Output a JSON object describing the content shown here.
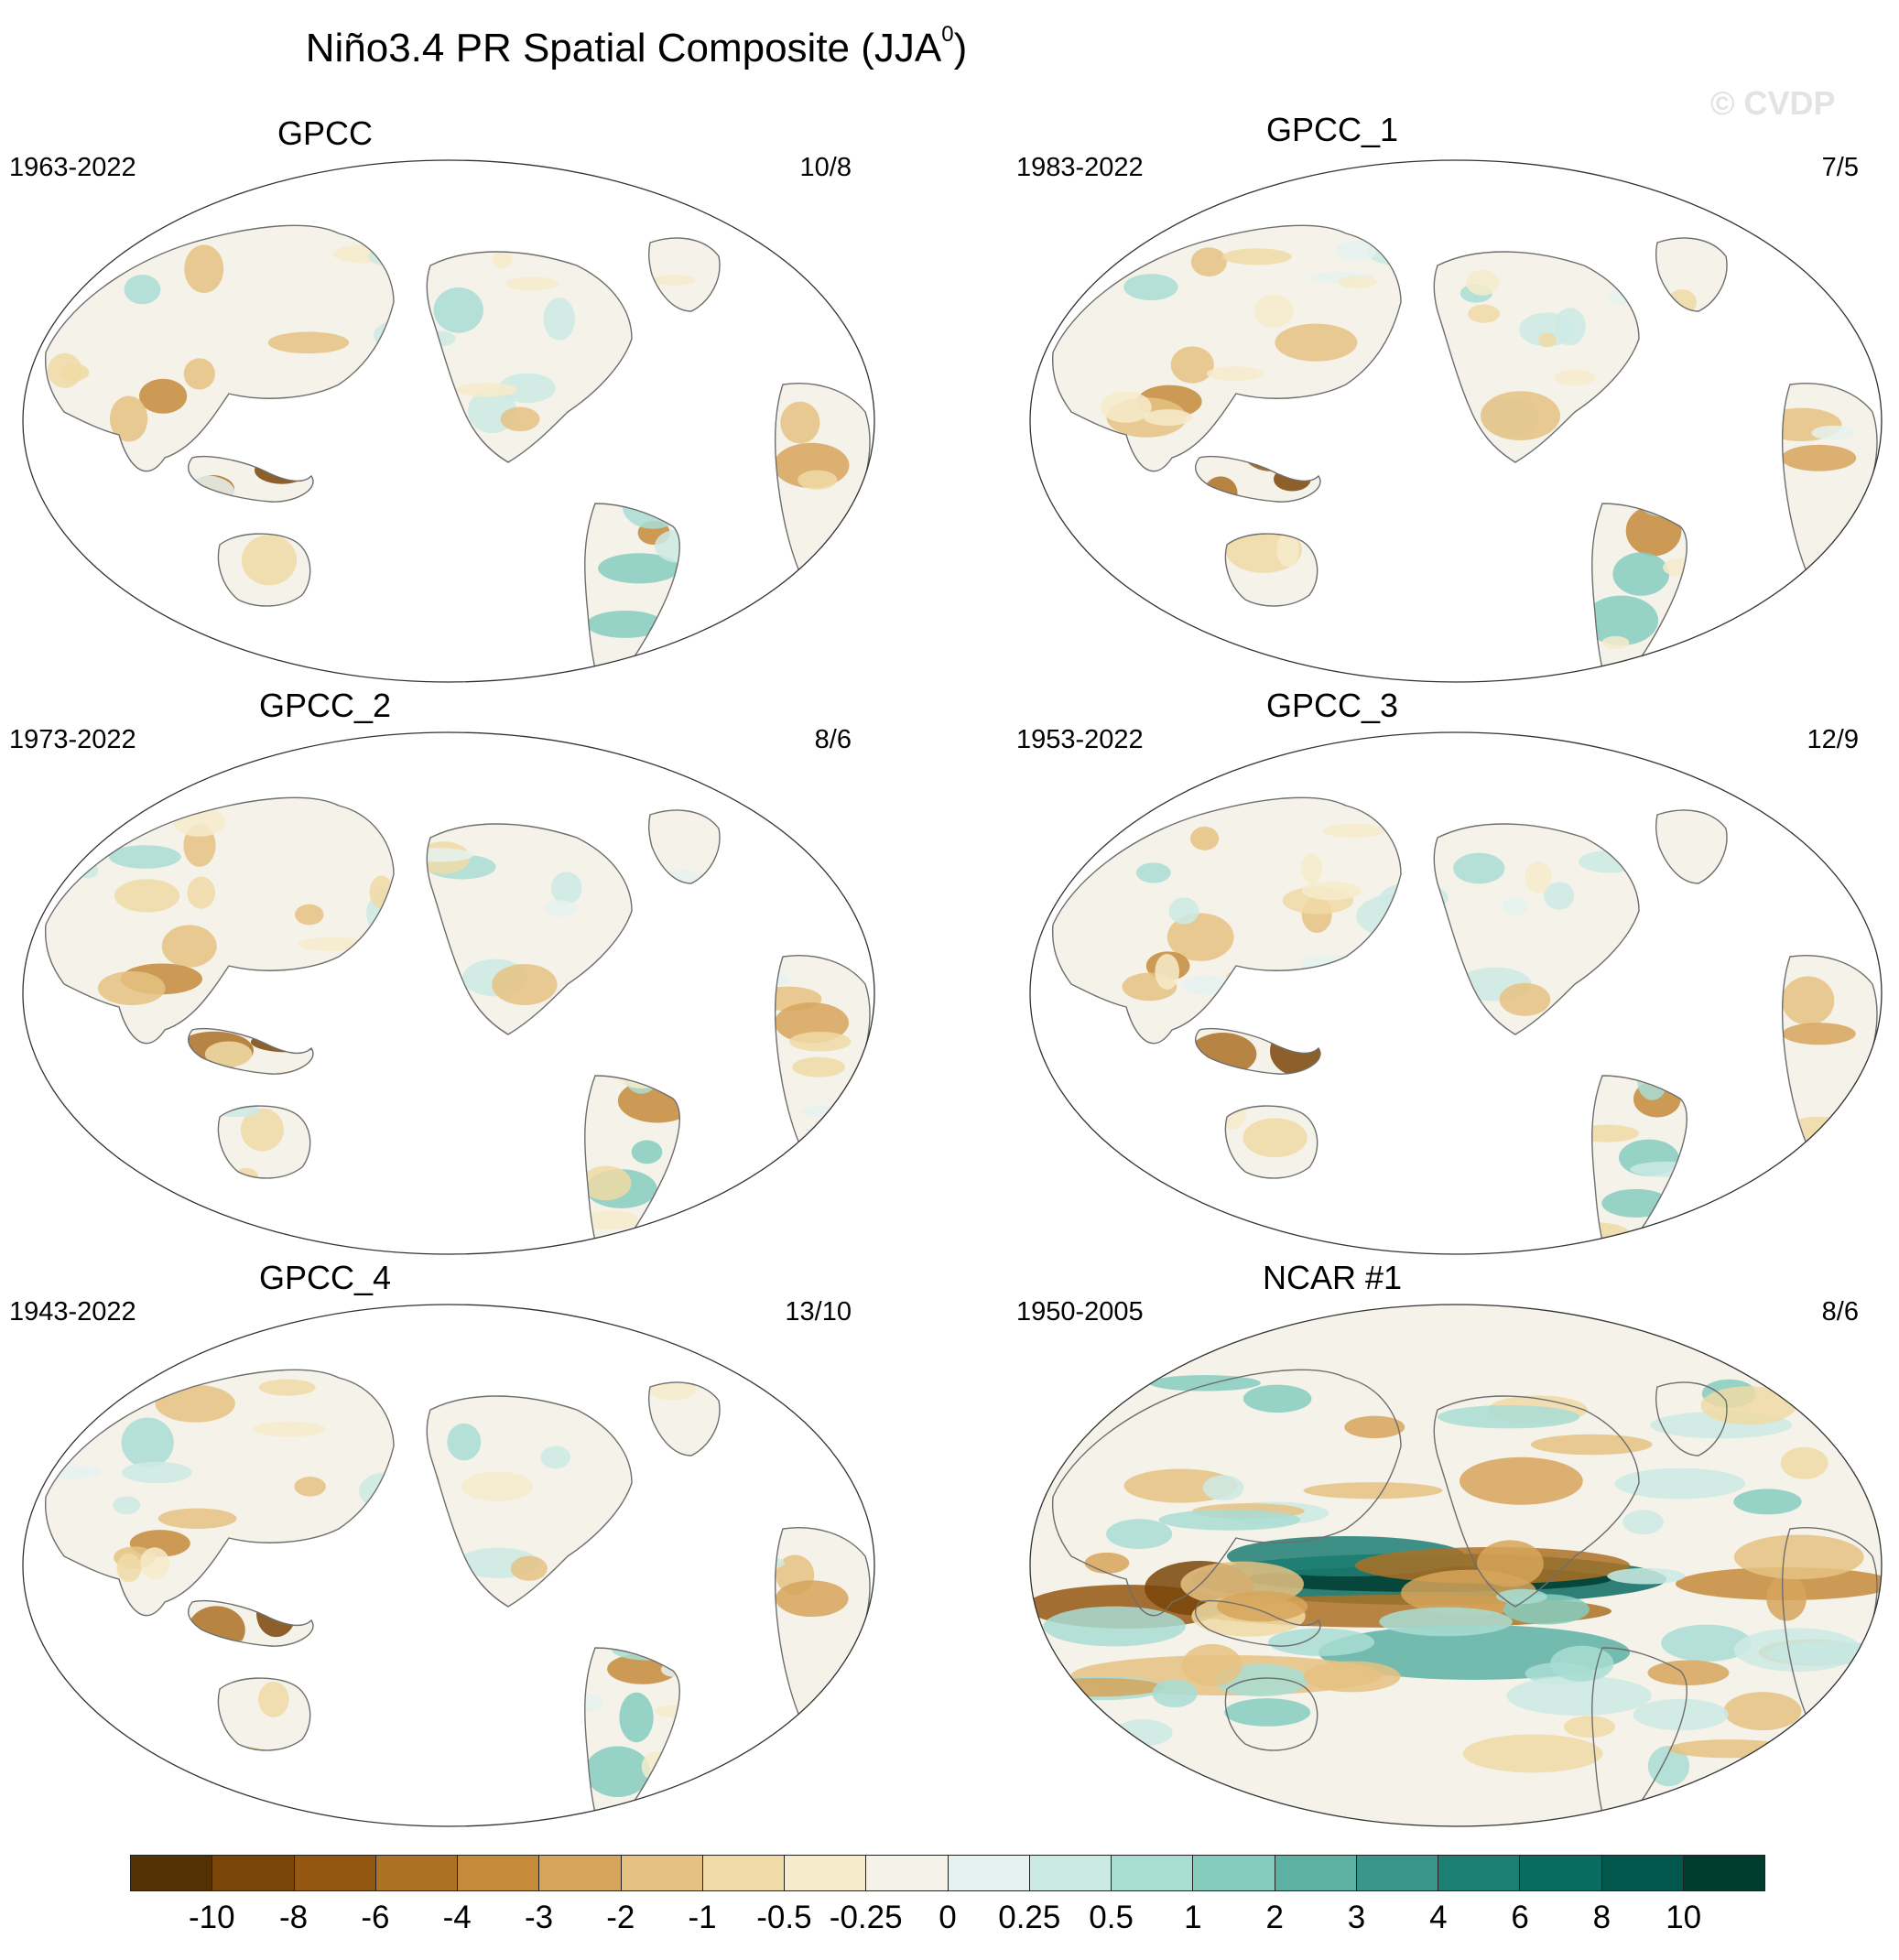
{
  "title": {
    "main": "Niño3.4 PR Spatial Composite (JJA",
    "sup": "0",
    "close": ")"
  },
  "watermark": "© CVDP",
  "panels": [
    {
      "name": "GPCC",
      "years": "1963-2022",
      "count": "10/8",
      "variant": "obs"
    },
    {
      "name": "GPCC_1",
      "years": "1983-2022",
      "count": "7/5",
      "variant": "obs"
    },
    {
      "name": "GPCC_2",
      "years": "1973-2022",
      "count": "8/6",
      "variant": "obs"
    },
    {
      "name": "GPCC_3",
      "years": "1953-2022",
      "count": "12/9",
      "variant": "obs"
    },
    {
      "name": "GPCC_4",
      "years": "1943-2022",
      "count": "13/10",
      "variant": "obs"
    },
    {
      "name": "NCAR #1",
      "years": "1950-2005",
      "count": "8/6",
      "variant": "model"
    }
  ],
  "colorbar": {
    "colors": [
      "#543005",
      "#7a4508",
      "#935711",
      "#ad7126",
      "#c48b3a",
      "#d6a45b",
      "#e5c282",
      "#f0dba6",
      "#f6ebcb",
      "#f5f2ea",
      "#e5f2ef",
      "#cceae4",
      "#a8ddd4",
      "#85ccbe",
      "#5cb1a3",
      "#3a968b",
      "#1d7f74",
      "#0a6b60",
      "#01574b",
      "#003c30"
    ],
    "labels": [
      "-10",
      "-8",
      "-6",
      "-4",
      "-3",
      "-2",
      "-1",
      "-0.5",
      "-0.25",
      "0",
      "0.25",
      "0.5",
      "1",
      "2",
      "3",
      "4",
      "6",
      "8",
      "10"
    ]
  }
}
